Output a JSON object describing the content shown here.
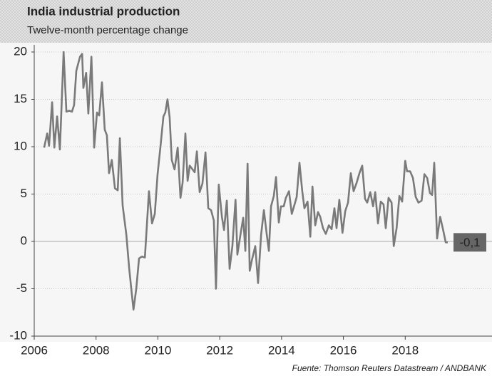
{
  "chart_data": {
    "type": "line",
    "title": "India industrial production",
    "subtitle": "Twelve-month percentage change",
    "source": "Fuente: Thomson Reuters Datastream / ANDBANK",
    "color": "#7a7a7a",
    "x": [
      2006.32,
      2006.42,
      2006.48,
      2006.58,
      2006.65,
      2006.74,
      2006.83,
      2006.95,
      2007.04,
      2007.13,
      2007.22,
      2007.29,
      2007.36,
      2007.48,
      2007.55,
      2007.59,
      2007.68,
      2007.75,
      2007.85,
      2007.94,
      2008.03,
      2008.1,
      2008.19,
      2008.28,
      2008.35,
      2008.42,
      2008.51,
      2008.61,
      2008.7,
      2008.77,
      2008.86,
      2008.98,
      2009.07,
      2009.14,
      2009.21,
      2009.3,
      2009.39,
      2009.48,
      2009.58,
      2009.71,
      2009.81,
      2009.9,
      2009.99,
      2010.08,
      2010.18,
      2010.24,
      2010.31,
      2010.38,
      2010.45,
      2010.54,
      2010.64,
      2010.73,
      2010.8,
      2010.89,
      2010.96,
      2011.03,
      2011.1,
      2011.19,
      2011.26,
      2011.35,
      2011.44,
      2011.54,
      2011.63,
      2011.72,
      2011.81,
      2011.88,
      2011.97,
      2012.07,
      2012.14,
      2012.23,
      2012.32,
      2012.41,
      2012.51,
      2012.57,
      2012.67,
      2012.76,
      2012.83,
      2012.9,
      2012.97,
      2013.04,
      2013.15,
      2013.24,
      2013.34,
      2013.43,
      2013.52,
      2013.59,
      2013.66,
      2013.75,
      2013.82,
      2013.91,
      2013.98,
      2014.07,
      2014.14,
      2014.24,
      2014.33,
      2014.42,
      2014.49,
      2014.58,
      2014.67,
      2014.74,
      2014.84,
      2014.93,
      2015.0,
      2015.09,
      2015.18,
      2015.25,
      2015.34,
      2015.43,
      2015.53,
      2015.62,
      2015.71,
      2015.78,
      2015.87,
      2015.97,
      2016.06,
      2016.15,
      2016.24,
      2016.33,
      2016.43,
      2016.52,
      2016.61,
      2016.7,
      2016.77,
      2016.87,
      2016.96,
      2017.03,
      2017.12,
      2017.21,
      2017.3,
      2017.37,
      2017.46,
      2017.56,
      2017.63,
      2017.72,
      2017.81,
      2017.9,
      2018.0,
      2018.06,
      2018.16,
      2018.25,
      2018.34,
      2018.43,
      2018.53,
      2018.62,
      2018.71,
      2018.8,
      2018.87,
      2018.94,
      2019.03,
      2019.13,
      2019.22,
      2019.31,
      2019.38
    ],
    "values": [
      9.9,
      11.4,
      10.1,
      14.7,
      9.9,
      13.2,
      9.7,
      20,
      13.7,
      13.8,
      13.7,
      14.4,
      18,
      19.5,
      19.8,
      16.2,
      17.8,
      13.5,
      19.5,
      9.9,
      13.6,
      13.3,
      16.8,
      11.8,
      11.2,
      7.2,
      8.6,
      5.6,
      5.4,
      10.9,
      3.8,
      0.7,
      -2.8,
      -5,
      -7.2,
      -5,
      -1.8,
      -1.6,
      -1.7,
      5.3,
      1.9,
      2.9,
      7.1,
      9.9,
      13.2,
      13.6,
      15,
      13.1,
      8.6,
      7.6,
      9.9,
      4.6,
      6.2,
      11.4,
      6.4,
      8,
      7.7,
      7.3,
      9.5,
      5.2,
      6.1,
      9.4,
      3.5,
      3.3,
      2.2,
      -5,
      6,
      2.6,
      1.2,
      4.3,
      -2.9,
      -0.5,
      4.4,
      -1.4,
      0.7,
      2.5,
      -1,
      8.2,
      -3.1,
      -2,
      -0.5,
      -4.4,
      0.7,
      3.3,
      0.8,
      -1,
      3.7,
      4.8,
      6.8,
      2,
      3.7,
      3.7,
      4.6,
      5.3,
      2.9,
      3.9,
      4.7,
      8.3,
      5.3,
      3.5,
      4.2,
      0.5,
      5.8,
      1.7,
      3.1,
      2.6,
      1.4,
      0.8,
      1.7,
      1.3,
      3.5,
      1.4,
      4.4,
      0.9,
      3.2,
      4.1,
      7.2,
      5.3,
      6.2,
      7.2,
      8,
      4.5,
      4.1,
      5.2,
      3.7,
      5.2,
      1.9,
      4.2,
      3.9,
      1.4,
      4.6,
      4.1,
      -0.5,
      1.4,
      4.8,
      4.2,
      8.5,
      7.4,
      7.4,
      6.7,
      4.7,
      4.1,
      4.3,
      7.1,
      6.7,
      5.1,
      4.9,
      8.3,
      0.3,
      2.6,
      1.3,
      -0.1,
      -0.1
    ],
    "annotations": [
      {
        "text": "-0,1",
        "value": -0.1
      }
    ],
    "xlim": [
      2006,
      2019.7
    ],
    "xticks": [
      2006,
      2008,
      2010,
      2012,
      2014,
      2016,
      2018
    ],
    "ylim": [
      -10,
      20
    ],
    "yticks": [
      20,
      15,
      10,
      5,
      0,
      -5,
      -10
    ],
    "grid": true
  }
}
